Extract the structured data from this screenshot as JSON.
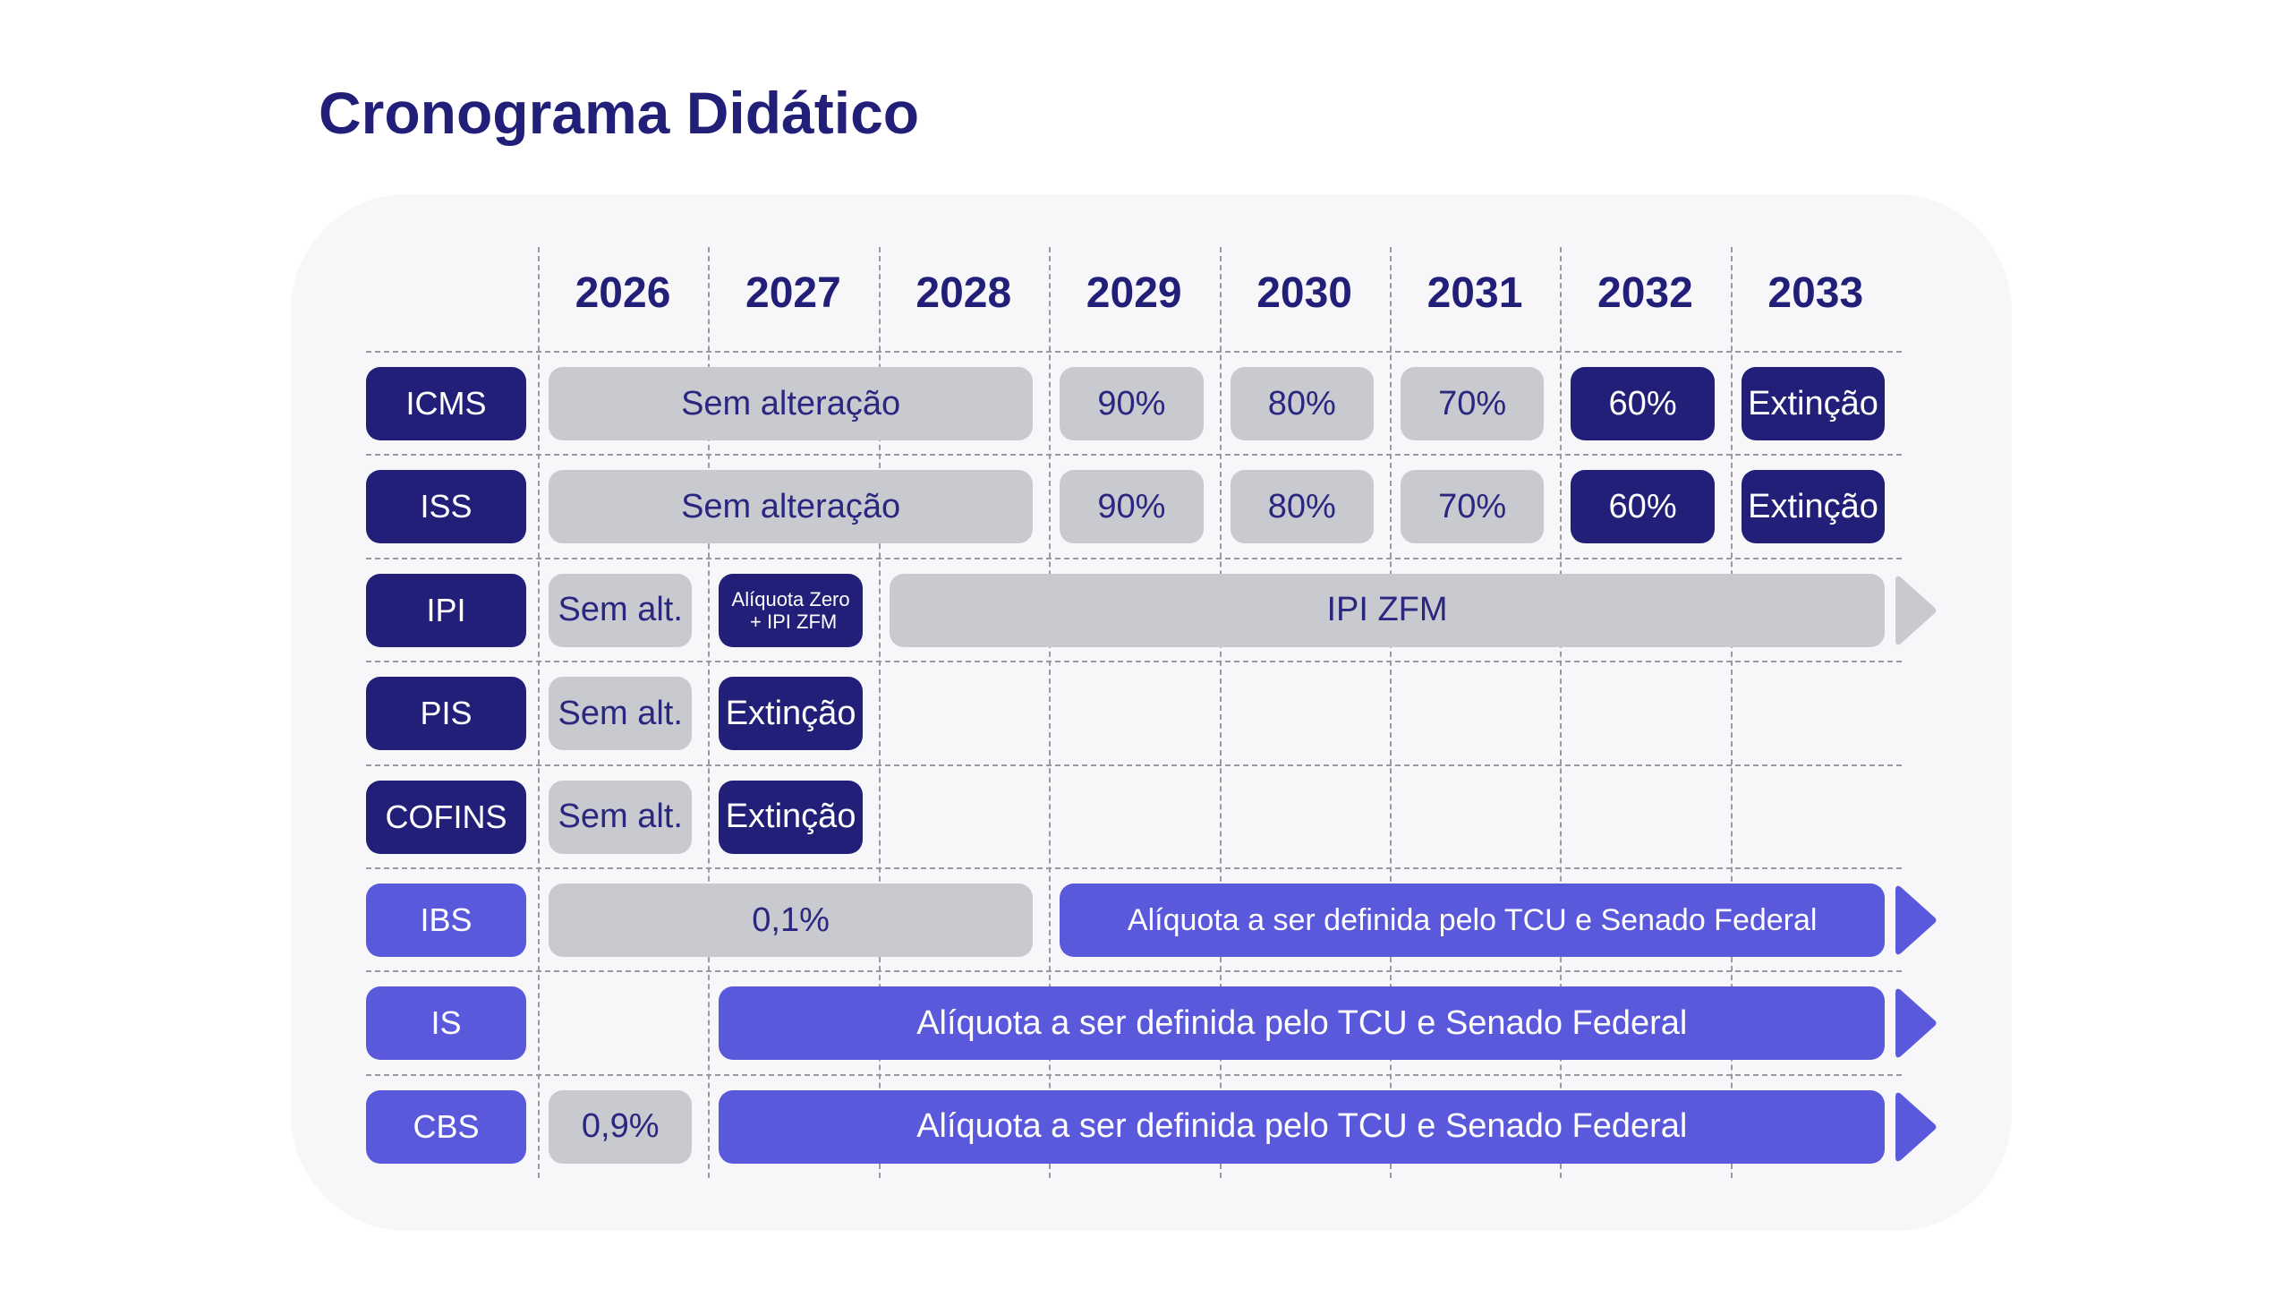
{
  "title": "Cronograma Didático",
  "years": [
    "2026",
    "2027",
    "2028",
    "2029",
    "2030",
    "2031",
    "2032",
    "2033"
  ],
  "colors": {
    "dark": "#221f78",
    "purple": "#5a58db",
    "gray": "#c8cacf"
  },
  "rows": [
    {
      "label": "ICMS",
      "style": "dark",
      "cells": [
        {
          "from": "2026",
          "to": "2028",
          "style": "gray",
          "text": "Sem alteração"
        },
        {
          "from": "2029",
          "to": "2029",
          "style": "gray",
          "text": "90%"
        },
        {
          "from": "2030",
          "to": "2030",
          "style": "gray",
          "text": "80%"
        },
        {
          "from": "2031",
          "to": "2031",
          "style": "gray",
          "text": "70%"
        },
        {
          "from": "2032",
          "to": "2032",
          "style": "dark",
          "text": "60%"
        },
        {
          "from": "2033",
          "to": "2033",
          "style": "dark",
          "text": "Extinção"
        }
      ]
    },
    {
      "label": "ISS",
      "style": "dark",
      "cells": [
        {
          "from": "2026",
          "to": "2028",
          "style": "gray",
          "text": "Sem alteração"
        },
        {
          "from": "2029",
          "to": "2029",
          "style": "gray",
          "text": "90%"
        },
        {
          "from": "2030",
          "to": "2030",
          "style": "gray",
          "text": "80%"
        },
        {
          "from": "2031",
          "to": "2031",
          "style": "gray",
          "text": "70%"
        },
        {
          "from": "2032",
          "to": "2032",
          "style": "dark",
          "text": "60%"
        },
        {
          "from": "2033",
          "to": "2033",
          "style": "dark",
          "text": "Extinção"
        }
      ]
    },
    {
      "label": "IPI",
      "style": "dark",
      "cells": [
        {
          "from": "2026",
          "to": "2026",
          "style": "gray",
          "text": "Sem alt."
        },
        {
          "from": "2027",
          "to": "2027",
          "style": "dark",
          "text": "Alíquota Zero\n + IPI ZFM",
          "small": true
        },
        {
          "from": "2028",
          "to": "2033",
          "style": "gray",
          "text": "IPI ZFM",
          "arrow": true
        }
      ]
    },
    {
      "label": "PIS",
      "style": "dark",
      "cells": [
        {
          "from": "2026",
          "to": "2026",
          "style": "gray",
          "text": "Sem alt."
        },
        {
          "from": "2027",
          "to": "2027",
          "style": "dark",
          "text": "Extinção"
        }
      ]
    },
    {
      "label": "COFINS",
      "style": "dark",
      "cells": [
        {
          "from": "2026",
          "to": "2026",
          "style": "gray",
          "text": "Sem alt."
        },
        {
          "from": "2027",
          "to": "2027",
          "style": "dark",
          "text": "Extinção"
        }
      ]
    },
    {
      "label": "IBS",
      "style": "purple",
      "cells": [
        {
          "from": "2026",
          "to": "2028",
          "style": "gray",
          "text": "0,1%"
        },
        {
          "from": "2029",
          "to": "2033",
          "style": "purple",
          "text": "Alíquota a ser definida pelo TCU e Senado Federal",
          "arrow": true,
          "medium": true
        }
      ]
    },
    {
      "label": "IS",
      "style": "purple",
      "cells": [
        {
          "from": "2027",
          "to": "2033",
          "style": "purple",
          "text": "Alíquota a ser definida pelo TCU e Senado Federal",
          "arrow": true
        }
      ]
    },
    {
      "label": "CBS",
      "style": "purple",
      "cells": [
        {
          "from": "2026",
          "to": "2026",
          "style": "gray",
          "text": "0,9%"
        },
        {
          "from": "2027",
          "to": "2033",
          "style": "purple",
          "text": "Alíquota a ser definida pelo TCU e Senado Federal",
          "arrow": true
        }
      ]
    }
  ]
}
